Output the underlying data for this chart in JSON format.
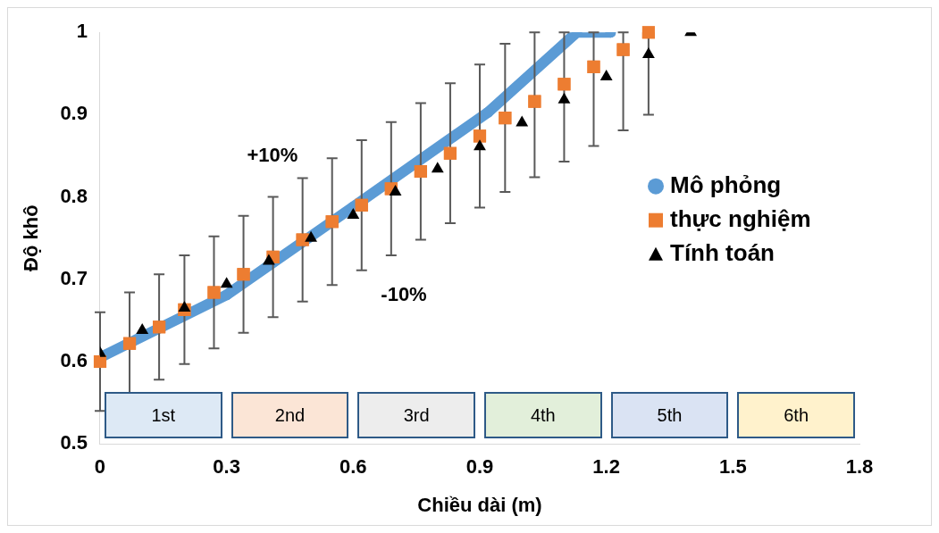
{
  "chart_data": {
    "type": "scatter",
    "xlabel": "Chiều dài (m)",
    "ylabel": "Độ khô",
    "xlim": [
      0,
      1.8
    ],
    "xticks": [
      0,
      0.3,
      0.6,
      0.9,
      1.2,
      1.5,
      1.8
    ],
    "ylim": [
      0.5,
      1
    ],
    "yticks": [
      0.5,
      0.6,
      0.7,
      0.8,
      0.9,
      1
    ],
    "grid": false,
    "legend": "right",
    "series": [
      {
        "name": "Mô phỏng",
        "type": "line",
        "color": "#5b9bd5",
        "marker": "circle",
        "x": [
          0,
          0.3,
          0.6,
          0.92,
          1.13,
          1.21
        ],
        "values": [
          0.605,
          0.681,
          0.788,
          0.903,
          1.0,
          1.0
        ]
      },
      {
        "name": "thực nghiệm",
        "color": "#ed7d31",
        "marker": "square",
        "x": [
          0,
          0.07,
          0.14,
          0.2,
          0.27,
          0.34,
          0.41,
          0.48,
          0.55,
          0.62,
          0.69,
          0.76,
          0.83,
          0.9,
          0.96,
          1.03,
          1.1,
          1.17,
          1.24,
          1.3
        ],
        "values": [
          0.6,
          0.622,
          0.642,
          0.663,
          0.684,
          0.706,
          0.727,
          0.748,
          0.77,
          0.79,
          0.81,
          0.831,
          0.853,
          0.874,
          0.896,
          0.916,
          0.937,
          0.958,
          0.979,
          1.0
        ],
        "errors": [
          [
            0.54,
            0.66
          ],
          [
            0.56,
            0.684
          ],
          [
            0.578,
            0.706
          ],
          [
            0.597,
            0.729
          ],
          [
            0.616,
            0.752
          ],
          [
            0.635,
            0.777
          ],
          [
            0.654,
            0.8
          ],
          [
            0.673,
            0.823
          ],
          [
            0.693,
            0.847
          ],
          [
            0.711,
            0.869
          ],
          [
            0.729,
            0.891
          ],
          [
            0.748,
            0.914
          ],
          [
            0.768,
            0.938
          ],
          [
            0.787,
            0.961
          ],
          [
            0.806,
            0.986
          ],
          [
            0.824,
            1.0
          ],
          [
            0.843,
            1.0
          ],
          [
            0.862,
            1.0
          ],
          [
            0.881,
            1.0
          ],
          [
            0.9,
            1.0
          ]
        ]
      },
      {
        "name": "Tính toán",
        "color": "#000000",
        "marker": "triangle",
        "x": [
          0,
          0.1,
          0.2,
          0.3,
          0.4,
          0.5,
          0.6,
          0.7,
          0.8,
          0.9,
          1.0,
          1.1,
          1.2,
          1.3,
          1.4
        ],
        "values": [
          0.61,
          0.638,
          0.665,
          0.694,
          0.722,
          0.75,
          0.778,
          0.806,
          0.834,
          0.861,
          0.89,
          0.918,
          0.946,
          0.973,
          1.0
        ]
      }
    ],
    "annotations": [
      "+10%",
      "-10%",
      "1st",
      "2nd",
      "3rd",
      "4th",
      "5th",
      "6th"
    ]
  }
}
